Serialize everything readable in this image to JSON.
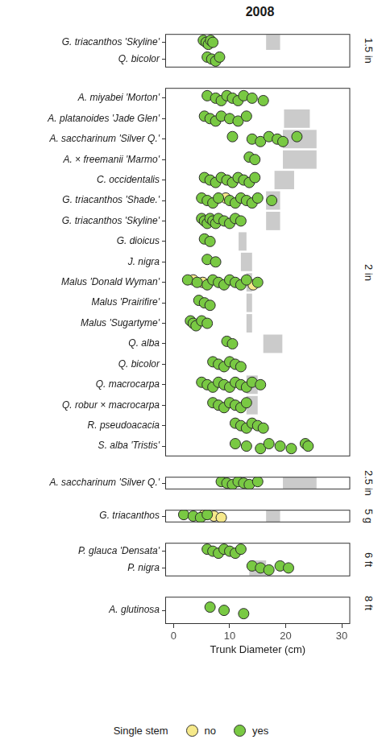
{
  "chart_data": {
    "type": "scatter",
    "title": "2008",
    "x_label": "Trunk Diameter (cm)",
    "xlim": [
      -1.5,
      31.5
    ],
    "xticks": [
      0,
      10,
      20,
      30
    ],
    "grid": false,
    "legend": "bottom",
    "legend_title": "Single stem",
    "series": [
      {
        "name": "no",
        "color": "#f6e98a",
        "marker": "circle"
      },
      {
        "name": "yes",
        "color": "#79c943",
        "marker": "circle"
      }
    ],
    "panels": [
      {
        "label": "1.5 in",
        "rows": [
          {
            "category": "G. triacanthos 'Skyline'",
            "values": {
              "no": [],
              "yes": [
                5.3,
                5.8,
                6.2,
                6.6,
                7.0
              ]
            },
            "reference_range": [
              16.5,
              19
            ]
          },
          {
            "category": "Q. bicolor",
            "values": {
              "no": [],
              "yes": [
                6.0,
                6.8,
                7.5,
                8.2
              ]
            },
            "reference_range": null
          }
        ]
      },
      {
        "label": "2 in",
        "rows": [
          {
            "category": "A. miyabei 'Morton'",
            "values": {
              "no": [],
              "yes": [
                6.0,
                7.5,
                8.5,
                9.5,
                10.5,
                11.5,
                12.5,
                14.0,
                16.0
              ]
            },
            "reference_range": null
          },
          {
            "category": "A. platanoides 'Jade Glen'",
            "values": {
              "no": [],
              "yes": [
                5.5,
                6.5,
                7.5,
                8.5,
                10.0,
                11.5,
                13.0
              ]
            },
            "reference_range": [
              19.7,
              24.3
            ]
          },
          {
            "category": "A. saccharinum 'Silver Q.'",
            "values": {
              "no": [],
              "yes": [
                10.5,
                14.0,
                15.5,
                17.0,
                18.5,
                19.5,
                22.0
              ]
            },
            "reference_range": [
              19.5,
              25.5
            ]
          },
          {
            "category": "A. × freemanii 'Marmo'",
            "values": {
              "no": [],
              "yes": [
                13.5,
                14.5
              ]
            },
            "reference_range": [
              19.5,
              25.5
            ]
          },
          {
            "category": "C. occidentalis",
            "values": {
              "no": [],
              "yes": [
                5.5,
                6.5,
                7.5,
                8.5,
                9.5,
                10.5,
                11.5,
                12.5,
                13.5,
                14.5
              ]
            },
            "reference_range": [
              18,
              21.5
            ]
          },
          {
            "category": "G. triacanthos 'Shade.'",
            "values": {
              "no": [
                9.3
              ],
              "yes": [
                5.0,
                6.0,
                7.0,
                8.0,
                10.0,
                11.0,
                12.0,
                13.0,
                14.0,
                15.0,
                17.5
              ]
            },
            "reference_range": [
              16.5,
              19
            ]
          },
          {
            "category": "G. triacanthos 'Skyline'",
            "values": {
              "no": [],
              "yes": [
                5.0,
                5.5,
                6.0,
                6.5,
                7.0,
                7.5,
                8.0,
                9.0,
                10.0,
                11.0,
                12.0
              ]
            },
            "reference_range": [
              16.5,
              19
            ]
          },
          {
            "category": "G. dioicus",
            "values": {
              "no": [],
              "yes": [
                5.5,
                6.5
              ]
            },
            "reference_range": [
              11.6,
              13
            ]
          },
          {
            "category": "J. nigra",
            "values": {
              "no": [],
              "yes": [
                6.0,
                7.5
              ]
            },
            "reference_range": [
              12,
              14
            ]
          },
          {
            "category": "Malus 'Donald Wyman'",
            "values": {
              "no": [
                3.5,
                5.2,
                14.2
              ],
              "yes": [
                2.5,
                4.2,
                6.0,
                7.0,
                8.0,
                9.0,
                10.0,
                11.0,
                12.0,
                13.0,
                15.0
              ]
            },
            "reference_range": [
              13,
              14
            ]
          },
          {
            "category": "Malus 'Prairifire'",
            "values": {
              "no": [],
              "yes": [
                4.5,
                5.5,
                6.5
              ]
            },
            "reference_range": [
              13,
              14
            ]
          },
          {
            "category": "Malus 'Sugartyme'",
            "values": {
              "no": [],
              "yes": [
                3.0,
                3.5,
                4.0,
                5.0,
                6.0
              ]
            },
            "reference_range": [
              13,
              14
            ]
          },
          {
            "category": "Q. alba",
            "values": {
              "no": [],
              "yes": [
                9.5,
                10.5
              ]
            },
            "reference_range": [
              16,
              19.4
            ]
          },
          {
            "category": "Q. bicolor",
            "values": {
              "no": [],
              "yes": [
                7.0,
                8.0,
                9.0,
                10.0,
                11.0,
                12.0
              ]
            },
            "reference_range": null
          },
          {
            "category": "Q. macrocarpa",
            "values": {
              "no": [],
              "yes": [
                5.0,
                6.0,
                7.0,
                8.0,
                9.0,
                10.0,
                11.0,
                12.0,
                13.0,
                14.0,
                15.5
              ]
            },
            "reference_range": [
              13,
              15
            ]
          },
          {
            "category": "Q. robur × macrocarpa",
            "values": {
              "no": [],
              "yes": [
                7.0,
                8.0,
                9.0,
                10.0,
                11.0,
                12.0,
                13.0
              ]
            },
            "reference_range": [
              13,
              15
            ]
          },
          {
            "category": "R. pseudoacacia",
            "values": {
              "no": [],
              "yes": [
                11.0,
                12.0,
                13.0,
                14.0,
                15.0,
                16.0
              ]
            },
            "reference_range": null
          },
          {
            "category": "S. alba 'Tristis'",
            "values": {
              "no": [],
              "yes": [
                11.0,
                13.0,
                15.5,
                17.0,
                19.0,
                21.0,
                23.5,
                24.0
              ]
            },
            "reference_range": null
          }
        ]
      },
      {
        "label": "2.5 in",
        "rows": [
          {
            "category": "A. saccharinum 'Silver Q.'",
            "values": {
              "no": [],
              "yes": [
                8.5,
                9.5,
                10.5,
                11.5,
                12.5,
                13.5,
                15.0
              ]
            },
            "reference_range": [
              19.5,
              25.5
            ]
          }
        ]
      },
      {
        "label": "5 g",
        "rows": [
          {
            "category": "G. triacanthos",
            "values": {
              "no": [
                5.5,
                7.2,
                8.5
              ],
              "yes": [
                1.8,
                3.5,
                4.8,
                6.0
              ]
            },
            "reference_range": [
              16.5,
              19
            ]
          }
        ]
      },
      {
        "label": "6 ft",
        "rows": [
          {
            "category": "P. glauca 'Densata'",
            "values": {
              "no": [],
              "yes": [
                6.0,
                7.0,
                8.0,
                9.0,
                10.0,
                11.0,
                12.0
              ]
            },
            "reference_range": null
          },
          {
            "category": "P. nigra",
            "values": {
              "no": [],
              "yes": [
                14.0,
                15.5,
                17.0,
                19.0,
                20.5
              ]
            },
            "reference_range": [
              13.5,
              16.5
            ]
          }
        ]
      },
      {
        "label": "8 ft",
        "rows": [
          {
            "category": "A. glutinosa",
            "values": {
              "no": [],
              "yes": [
                6.5,
                9.0,
                12.5
              ]
            },
            "reference_range": null
          }
        ]
      }
    ]
  }
}
